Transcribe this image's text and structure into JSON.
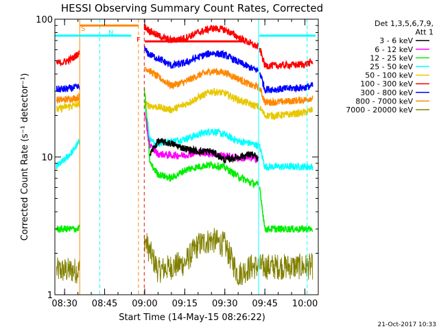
{
  "chart_data": {
    "type": "line",
    "title": "HESSI Observing Summary Count Rates, Corrected",
    "xlabel": "Start Time (14-May-15 08:26:22)",
    "ylabel": "Corrected Count Rate (s⁻¹ detector⁻¹)",
    "y_scale": "log",
    "ylim": [
      1,
      100
    ],
    "xlim": [
      "08:26:22",
      "10:05:00"
    ],
    "x_ticks": [
      "08:30",
      "08:45",
      "09:00",
      "09:15",
      "09:30",
      "09:45",
      "10:00"
    ],
    "y_ticks": [
      {
        "value": 1,
        "label": "1"
      },
      {
        "value": 10,
        "label": "10"
      },
      {
        "value": 100,
        "label": "100"
      }
    ],
    "legend": {
      "placement": "top-right-outside",
      "header": [
        "Det 1,3,5,6,7,9,",
        "Att 1"
      ],
      "entries": [
        {
          "label": "3 - 6 keV",
          "color": "#000000"
        },
        {
          "label": "6 - 12 keV",
          "color": "#ff00ff"
        },
        {
          "label": "12 - 25 keV",
          "color": "#00ee00"
        },
        {
          "label": "25 - 50 keV",
          "color": "#00ffff"
        },
        {
          "label": "50 - 100 keV",
          "color": "#e8c800"
        },
        {
          "label": "100 - 300 keV",
          "color": "#ff0000"
        },
        {
          "label": "300 - 800 keV",
          "color": "#0000ff"
        },
        {
          "label": "800 - 7000 keV",
          "color": "#ff8800"
        },
        {
          "label": "7000 - 20000 keV",
          "color": "#808000"
        }
      ]
    },
    "flags": [
      {
        "label": "S",
        "color": "#ff8800",
        "start": "08:35:40",
        "end": "08:57:40",
        "value": 90
      },
      {
        "label": "N",
        "color": "#00ffff",
        "start": "08:26:22",
        "end": "08:55:00",
        "value": 76
      },
      {
        "label": "F",
        "color": "#ff0000",
        "start": "09:00:00",
        "end": "09:37:00",
        "value": 69
      },
      {
        "label": "",
        "color": "#00ffff",
        "start": "09:43:00",
        "end": "10:04:00",
        "value": 76
      }
    ],
    "markers": [
      {
        "time": "08:35:40",
        "color": "#ff8800",
        "style": "solid"
      },
      {
        "time": "08:43:10",
        "color": "#00ffff",
        "style": "dashed"
      },
      {
        "time": "08:57:40",
        "color": "#ff8800",
        "style": "dashed"
      },
      {
        "time": "08:59:50",
        "color": "#ff0000",
        "style": "dashed"
      },
      {
        "time": "09:42:40",
        "color": "#00ffff",
        "style": "solid"
      },
      {
        "time": "10:00:50",
        "color": "#00ffff",
        "style": "dashed"
      }
    ],
    "gaps": [
      {
        "start": "08:35:40",
        "end": "08:59:50"
      },
      {
        "start": "09:42:40",
        "end": "09:43:00"
      }
    ],
    "series": [
      {
        "name": "3 - 6 keV",
        "color": "#000000",
        "points": [
          [
            "09:02",
            10.5
          ],
          [
            "09:05",
            13
          ],
          [
            "09:10",
            12.5
          ],
          [
            "09:15",
            11.5
          ],
          [
            "09:20",
            11
          ],
          [
            "09:25",
            11
          ],
          [
            "09:30",
            9.5
          ],
          [
            "09:35",
            10
          ],
          [
            "09:40",
            10.5
          ],
          [
            "09:43",
            9.5
          ]
        ]
      },
      {
        "name": "6 - 12 keV",
        "color": "#ff00ff",
        "points": [
          [
            "09:00",
            20
          ],
          [
            "09:02",
            12
          ],
          [
            "09:05",
            10.5
          ],
          [
            "09:10",
            10.3
          ],
          [
            "09:15",
            10.3
          ],
          [
            "09:20",
            10.8
          ],
          [
            "09:25",
            10.6
          ],
          [
            "09:30",
            10.2
          ],
          [
            "09:35",
            9.8
          ],
          [
            "09:40",
            9.8
          ],
          [
            "09:43",
            9.6
          ]
        ]
      },
      {
        "name": "12 - 25 keV",
        "color": "#00ee00",
        "points": [
          [
            "08:27",
            3
          ],
          [
            "08:35",
            3
          ],
          [
            "09:00",
            30
          ],
          [
            "09:02",
            9
          ],
          [
            "09:05",
            7.5
          ],
          [
            "09:10",
            7
          ],
          [
            "09:15",
            8
          ],
          [
            "09:20",
            8.5
          ],
          [
            "09:25",
            8.8
          ],
          [
            "09:30",
            8.4
          ],
          [
            "09:35",
            7.2
          ],
          [
            "09:40",
            6.5
          ],
          [
            "09:43",
            6.2
          ],
          [
            "09:45",
            3
          ],
          [
            "10:03",
            3
          ]
        ]
      },
      {
        "name": "25 - 50 keV",
        "color": "#00ffff",
        "points": [
          [
            "08:27",
            8.5
          ],
          [
            "08:30",
            9.5
          ],
          [
            "08:33",
            11
          ],
          [
            "08:35",
            12.5
          ],
          [
            "09:00",
            25
          ],
          [
            "09:02",
            13
          ],
          [
            "09:05",
            12.5
          ],
          [
            "09:10",
            13
          ],
          [
            "09:15",
            13.5
          ],
          [
            "09:20",
            14.5
          ],
          [
            "09:25",
            15.5
          ],
          [
            "09:30",
            14.5
          ],
          [
            "09:35",
            13
          ],
          [
            "09:40",
            12.5
          ],
          [
            "09:43",
            12
          ],
          [
            "09:45",
            8.5
          ],
          [
            "09:50",
            8.5
          ],
          [
            "10:00",
            8.5
          ],
          [
            "10:03",
            8.5
          ]
        ]
      },
      {
        "name": "50 - 100 keV",
        "color": "#e8c800",
        "points": [
          [
            "08:27",
            22
          ],
          [
            "08:30",
            23
          ],
          [
            "08:35",
            24
          ],
          [
            "09:00",
            24
          ],
          [
            "09:05",
            23
          ],
          [
            "09:10",
            22
          ],
          [
            "09:15",
            24
          ],
          [
            "09:20",
            27
          ],
          [
            "09:25",
            30
          ],
          [
            "09:30",
            29
          ],
          [
            "09:35",
            26
          ],
          [
            "09:40",
            24
          ],
          [
            "09:43",
            23
          ],
          [
            "09:45",
            20
          ],
          [
            "09:50",
            20
          ],
          [
            "10:00",
            21
          ],
          [
            "10:03",
            22
          ]
        ]
      },
      {
        "name": "100 - 300 keV",
        "color": "#ff0000",
        "points": [
          [
            "08:27",
            48
          ],
          [
            "08:30",
            49
          ],
          [
            "08:33",
            52
          ],
          [
            "08:35",
            56
          ],
          [
            "09:00",
            88
          ],
          [
            "09:02",
            82
          ],
          [
            "09:05",
            76
          ],
          [
            "09:10",
            70
          ],
          [
            "09:15",
            73
          ],
          [
            "09:20",
            80
          ],
          [
            "09:25",
            86
          ],
          [
            "09:30",
            84
          ],
          [
            "09:35",
            74
          ],
          [
            "09:40",
            66
          ],
          [
            "09:43",
            62
          ],
          [
            "09:45",
            46
          ],
          [
            "09:50",
            46
          ],
          [
            "10:00",
            47
          ],
          [
            "10:03",
            49
          ]
        ]
      },
      {
        "name": "300 - 800 keV",
        "color": "#0000ff",
        "points": [
          [
            "08:27",
            31
          ],
          [
            "08:30",
            31
          ],
          [
            "08:35",
            32
          ],
          [
            "09:00",
            60
          ],
          [
            "09:02",
            55
          ],
          [
            "09:05",
            52
          ],
          [
            "09:10",
            46
          ],
          [
            "09:15",
            48
          ],
          [
            "09:20",
            53
          ],
          [
            "09:25",
            57
          ],
          [
            "09:30",
            55
          ],
          [
            "09:35",
            49
          ],
          [
            "09:40",
            44
          ],
          [
            "09:43",
            42
          ],
          [
            "09:45",
            31
          ],
          [
            "09:50",
            31
          ],
          [
            "10:00",
            32
          ],
          [
            "10:03",
            33
          ]
        ]
      },
      {
        "name": "800 - 7000 keV",
        "color": "#ff8800",
        "points": [
          [
            "08:27",
            26
          ],
          [
            "08:30",
            26
          ],
          [
            "08:35",
            27
          ],
          [
            "09:00",
            45
          ],
          [
            "09:02",
            42
          ],
          [
            "09:05",
            38
          ],
          [
            "09:10",
            33
          ],
          [
            "09:15",
            35
          ],
          [
            "09:20",
            39
          ],
          [
            "09:25",
            42
          ],
          [
            "09:30",
            41
          ],
          [
            "09:35",
            37
          ],
          [
            "09:40",
            33
          ],
          [
            "09:43",
            32
          ],
          [
            "09:45",
            25
          ],
          [
            "09:50",
            25
          ],
          [
            "10:00",
            26
          ],
          [
            "10:03",
            27
          ]
        ]
      },
      {
        "name": "7000 - 20000 keV",
        "color": "#808000",
        "points": [
          [
            "08:27",
            1.5
          ],
          [
            "08:35",
            1.5
          ],
          [
            "09:00",
            2.5
          ],
          [
            "09:05",
            1.5
          ],
          [
            "09:15",
            1.7
          ],
          [
            "09:20",
            2.3
          ],
          [
            "09:25",
            2.5
          ],
          [
            "09:30",
            2.3
          ],
          [
            "09:35",
            1.4
          ],
          [
            "09:40",
            1.6
          ],
          [
            "09:43",
            1.6
          ],
          [
            "09:45",
            1.6
          ],
          [
            "10:03",
            1.6
          ]
        ]
      }
    ],
    "grid": false
  },
  "footer": {
    "timestamp": "21-Oct-2017 10:33"
  }
}
